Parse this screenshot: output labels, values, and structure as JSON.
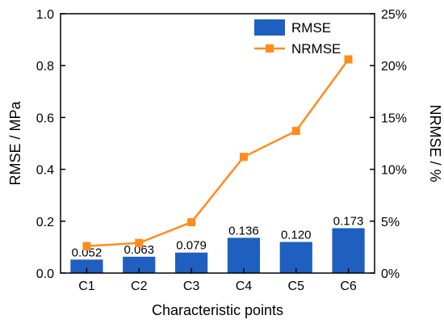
{
  "chart_data": {
    "type": "bar",
    "categories": [
      "C1",
      "C2",
      "C3",
      "C4",
      "C5",
      "C6"
    ],
    "series": [
      {
        "name": "RMSE",
        "type": "bar",
        "axis": "left",
        "values": [
          0.052,
          0.063,
          0.079,
          0.136,
          0.12,
          0.173
        ],
        "labels": [
          "0.052",
          "0.063",
          "0.079",
          "0.136",
          "0.120",
          "0.173"
        ],
        "color": "#1f5fbf"
      },
      {
        "name": "NRMSE",
        "type": "line",
        "axis": "right",
        "values": [
          2.6,
          2.9,
          4.9,
          11.2,
          13.7,
          20.6
        ],
        "color": "#ff8c1a"
      }
    ],
    "xlabel": "Characteristic points",
    "ylabel": "RMSE / MPa",
    "ylabel_right": "NRMSE / %",
    "ylim": [
      0,
      1.0
    ],
    "ylim_right": [
      0,
      25
    ],
    "yticks": [
      "0.0",
      "0.2",
      "0.4",
      "0.6",
      "0.8",
      "1.0"
    ],
    "yticks_right": [
      "0%",
      "5%",
      "10%",
      "15%",
      "20%",
      "25%"
    ],
    "legend_position": "top-right",
    "grid": false
  }
}
